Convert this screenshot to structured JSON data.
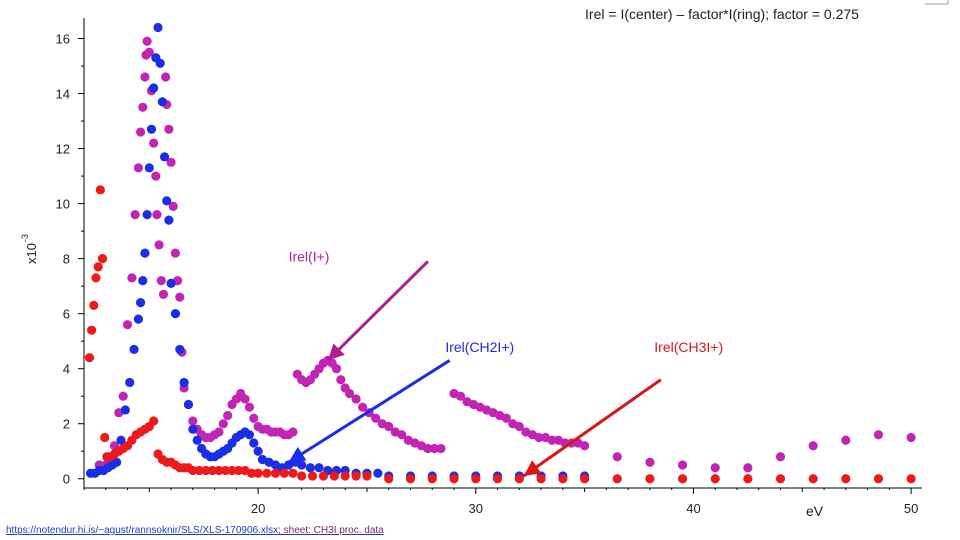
{
  "chart_data": {
    "type": "scatter",
    "title": "Irel = I(center) – factor*I(ring); factor = 0.275",
    "xlabel": "eV",
    "ylabel": "",
    "y_multiplier": "x10",
    "y_multiplier_exp": "-3",
    "xlim": [
      12,
      50.5
    ],
    "ylim": [
      -0.3,
      16.6
    ],
    "x_ticks": [
      20,
      30,
      40,
      50
    ],
    "x_tick_labels": [
      "20",
      "30",
      "40",
      "50"
    ],
    "y_ticks": [
      0,
      2,
      4,
      6,
      8,
      10,
      12,
      14,
      16
    ],
    "y_tick_labels": [
      "0",
      "2",
      "4",
      "6",
      "8",
      "10",
      "12",
      "14",
      "16"
    ],
    "grid": false,
    "series": [
      {
        "name": "Irel(I+)",
        "color": "#c224b4",
        "x": [
          12.7,
          13.0,
          13.2,
          13.4,
          13.6,
          13.8,
          14.0,
          14.2,
          14.35,
          14.5,
          14.6,
          14.7,
          14.8,
          14.85,
          14.9,
          15.0,
          15.1,
          15.2,
          15.3,
          15.35,
          15.45,
          15.55,
          15.65,
          15.75,
          15.8,
          15.9,
          16.0,
          16.1,
          16.2,
          16.3,
          16.4,
          16.5,
          16.6,
          16.8,
          17.0,
          17.2,
          17.4,
          17.6,
          17.8,
          18.0,
          18.2,
          18.4,
          18.6,
          18.8,
          19.0,
          19.2,
          19.4,
          19.6,
          19.8,
          20.0,
          20.2,
          20.4,
          20.6,
          20.8,
          21.0,
          21.2,
          21.4,
          21.6,
          21.8,
          22.0,
          22.2,
          22.4,
          22.6,
          22.8,
          23.0,
          23.2,
          23.4,
          23.6,
          23.8,
          24.0,
          24.2,
          24.5,
          24.8,
          25.1,
          25.4,
          25.7,
          26.0,
          26.3,
          26.6,
          26.9,
          27.2,
          27.5,
          27.8,
          28.1,
          28.4,
          29.0,
          29.3,
          29.6,
          29.9,
          30.2,
          30.5,
          30.8,
          31.1,
          31.4,
          31.7,
          32.0,
          32.3,
          32.6,
          32.9,
          33.2,
          33.5,
          33.8,
          34.1,
          34.4,
          34.7,
          35.0,
          36.5,
          38.0,
          39.5,
          41.0,
          42.5,
          44.0,
          45.5,
          47.0,
          48.5,
          50.0
        ],
        "y": [
          0.5,
          0.5,
          0.6,
          1.2,
          2.4,
          3.0,
          5.6,
          7.3,
          9.6,
          11.3,
          12.6,
          13.5,
          14.6,
          15.4,
          15.9,
          15.5,
          14.1,
          12.2,
          11.0,
          9.6,
          8.5,
          7.2,
          6.7,
          14.6,
          13.6,
          12.7,
          11.5,
          9.9,
          8.2,
          7.2,
          6.6,
          4.6,
          3.3,
          2.7,
          2.1,
          1.8,
          1.6,
          1.5,
          1.5,
          1.6,
          1.7,
          2.0,
          2.3,
          2.7,
          2.9,
          3.1,
          2.9,
          2.6,
          2.2,
          1.9,
          1.8,
          1.8,
          1.7,
          1.7,
          1.7,
          1.6,
          1.6,
          1.7,
          3.8,
          3.6,
          3.5,
          3.6,
          3.8,
          4.0,
          4.2,
          4.3,
          4.2,
          4.0,
          3.6,
          3.3,
          3.1,
          2.9,
          2.6,
          2.4,
          2.2,
          2.0,
          1.9,
          1.7,
          1.6,
          1.4,
          1.3,
          1.2,
          1.1,
          1.1,
          1.1,
          3.1,
          3.0,
          2.8,
          2.7,
          2.6,
          2.5,
          2.4,
          2.3,
          2.2,
          2.0,
          1.9,
          1.7,
          1.6,
          1.5,
          1.5,
          1.4,
          1.4,
          1.3,
          1.3,
          1.3,
          1.2,
          0.8,
          0.6,
          0.5,
          0.4,
          0.4,
          0.8,
          1.2,
          1.4,
          1.6,
          1.5
        ]
      },
      {
        "name": "Irel(CH2I+)",
        "color": "#1a2ee8",
        "x": [
          12.3,
          12.5,
          12.7,
          12.9,
          13.1,
          13.3,
          13.5,
          13.7,
          13.9,
          14.1,
          14.3,
          14.5,
          14.6,
          14.7,
          14.8,
          14.9,
          15.0,
          15.1,
          15.2,
          15.3,
          15.4,
          15.5,
          15.6,
          15.7,
          15.8,
          15.9,
          16.0,
          16.2,
          16.4,
          16.6,
          16.8,
          17.0,
          17.2,
          17.4,
          17.6,
          17.8,
          18.0,
          18.2,
          18.4,
          18.6,
          18.8,
          19.0,
          19.2,
          19.4,
          19.6,
          19.8,
          20.0,
          20.2,
          20.5,
          20.8,
          21.1,
          21.4,
          21.7,
          22.0,
          22.4,
          22.8,
          23.2,
          23.6,
          24.0,
          24.5,
          25.0,
          25.5,
          26.0,
          27.0,
          28.0,
          29.0,
          30.0,
          31.0,
          32.0,
          33.0,
          34.0,
          35.0
        ],
        "y": [
          0.2,
          0.2,
          0.3,
          0.3,
          0.4,
          0.5,
          0.6,
          1.4,
          2.5,
          3.5,
          4.7,
          5.8,
          6.4,
          7.2,
          8.2,
          9.6,
          11.3,
          12.7,
          14.2,
          15.3,
          16.4,
          15.1,
          13.7,
          11.7,
          10.1,
          9.4,
          7.1,
          6.0,
          4.7,
          3.5,
          2.7,
          1.8,
          1.4,
          1.1,
          0.9,
          0.8,
          0.8,
          0.9,
          1.0,
          1.1,
          1.3,
          1.5,
          1.6,
          1.7,
          1.6,
          1.3,
          1.0,
          0.7,
          0.6,
          0.5,
          0.4,
          0.5,
          0.6,
          0.5,
          0.4,
          0.4,
          0.3,
          0.3,
          0.3,
          0.2,
          0.2,
          0.2,
          0.1,
          0.1,
          0.1,
          0.1,
          0.1,
          0.1,
          0.1,
          0.1,
          0.1,
          0.1
        ]
      },
      {
        "name": "Irel(CH3I+)",
        "color": "#ec1a1a",
        "x": [
          12.25,
          12.35,
          12.45,
          12.55,
          12.65,
          12.75,
          12.85,
          12.95,
          13.05,
          13.2,
          13.4,
          13.6,
          13.8,
          14.0,
          14.2,
          14.4,
          14.6,
          14.8,
          15.0,
          15.2,
          15.4,
          15.6,
          15.8,
          16.0,
          16.2,
          16.4,
          16.6,
          16.8,
          17.0,
          17.3,
          17.6,
          17.9,
          18.2,
          18.5,
          18.8,
          19.1,
          19.4,
          19.7,
          20.0,
          20.4,
          20.8,
          21.2,
          21.6,
          22.0,
          22.5,
          23.0,
          23.5,
          24.0,
          24.5,
          25.0,
          26.0,
          27.0,
          28.0,
          29.0,
          30.0,
          31.0,
          32.0,
          33.0,
          34.0,
          35.0,
          36.5,
          38.0,
          39.5,
          41.0,
          42.5,
          44.0,
          45.5,
          47.0,
          48.5,
          50.0
        ],
        "y": [
          4.4,
          5.4,
          6.3,
          7.3,
          7.7,
          10.5,
          8.0,
          1.5,
          0.8,
          0.8,
          0.9,
          1.0,
          1.1,
          1.2,
          1.4,
          1.6,
          1.7,
          1.8,
          1.9,
          2.1,
          0.9,
          0.7,
          0.6,
          0.6,
          0.5,
          0.4,
          0.4,
          0.4,
          0.3,
          0.3,
          0.3,
          0.3,
          0.3,
          0.3,
          0.3,
          0.3,
          0.3,
          0.2,
          0.2,
          0.2,
          0.2,
          0.2,
          0.2,
          0.1,
          0.1,
          0.1,
          0.1,
          0.1,
          0.1,
          0.1,
          0.0,
          0.0,
          0.0,
          0.0,
          0.0,
          0.0,
          0.0,
          0.0,
          0.0,
          0.0,
          0.0,
          0.0,
          0.0,
          0.0,
          0.0,
          0.0,
          0.0,
          0.0,
          0.0,
          0.0
        ]
      }
    ],
    "annotations": [
      {
        "text": "Irel(I+)",
        "color": "#b0208e",
        "at_x": 21.4,
        "at_y": 7.9,
        "arrow_from": [
          27.8,
          7.9
        ],
        "arrow_to": [
          23.2,
          4.3
        ]
      },
      {
        "text": "Irel(CH2I+)",
        "color": "#1a2ee8",
        "at_x": 28.6,
        "at_y": 4.6,
        "arrow_from": [
          28.8,
          4.3
        ],
        "arrow_to": [
          21.4,
          0.6
        ]
      },
      {
        "text": "Irel(CH3I+)",
        "color": "#d81818",
        "at_x": 38.2,
        "at_y": 4.6,
        "arrow_from": [
          38.5,
          3.6
        ],
        "arrow_to": [
          32.2,
          0.1
        ]
      }
    ]
  },
  "footer": {
    "link_text": "https://notendur.hi.is/~agust/rannsoknir/SLS/XLS-170906.xlsx",
    "sheet_text": "; sheet: CH3I proc. data"
  }
}
